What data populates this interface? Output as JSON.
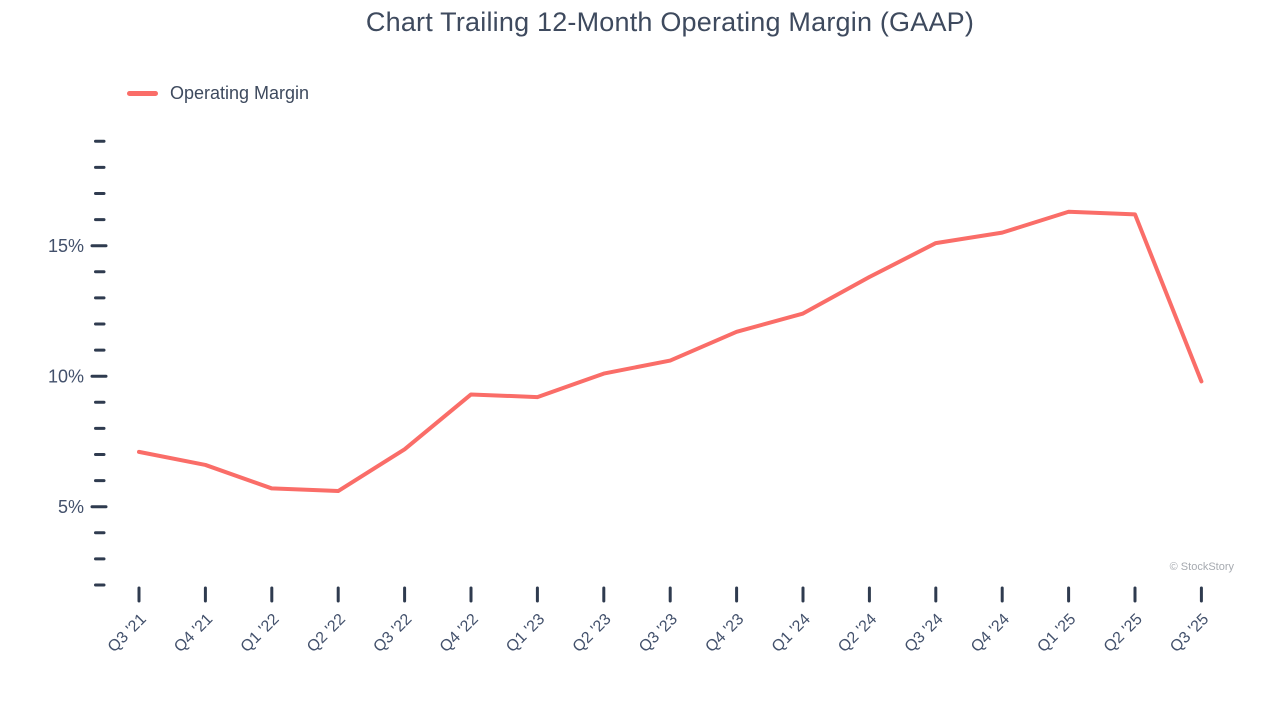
{
  "title": "Chart Trailing 12-Month Operating Margin (GAAP)",
  "legend": {
    "label": "Operating Margin"
  },
  "copyright": "© StockStory",
  "colors": {
    "series_line": "#fa6d68",
    "axis_text": "#42506b",
    "tick_mark": "#2f3b4f",
    "title_text": "#3e4a5e"
  },
  "chart_data": {
    "type": "line",
    "title": "Chart Trailing 12-Month Operating Margin (GAAP)",
    "categories": [
      "Q3 '21",
      "Q4 '21",
      "Q1 '22",
      "Q2 '22",
      "Q3 '22",
      "Q4 '22",
      "Q1 '23",
      "Q2 '23",
      "Q3 '23",
      "Q4 '23",
      "Q1 '24",
      "Q2 '24",
      "Q3 '24",
      "Q4 '24",
      "Q1 '25",
      "Q2 '25",
      "Q3 '25"
    ],
    "series": [
      {
        "name": "Operating Margin",
        "color": "#fa6d68",
        "values": [
          7.1,
          6.6,
          5.7,
          5.6,
          7.2,
          9.3,
          9.2,
          10.1,
          10.6,
          11.7,
          12.4,
          13.8,
          15.1,
          15.5,
          16.3,
          16.2,
          9.8
        ]
      }
    ],
    "xlabel": "",
    "ylabel": "",
    "unit": "%",
    "y_axis": {
      "tick_min": 2,
      "tick_max": 19,
      "tick_step": 1,
      "labeled_ticks": [
        5,
        10,
        15
      ],
      "label_format": "percent"
    },
    "x_axis": {
      "label_rotation": -45
    },
    "grid": false,
    "legend_position": "top-left",
    "watermark": "© StockStory"
  }
}
